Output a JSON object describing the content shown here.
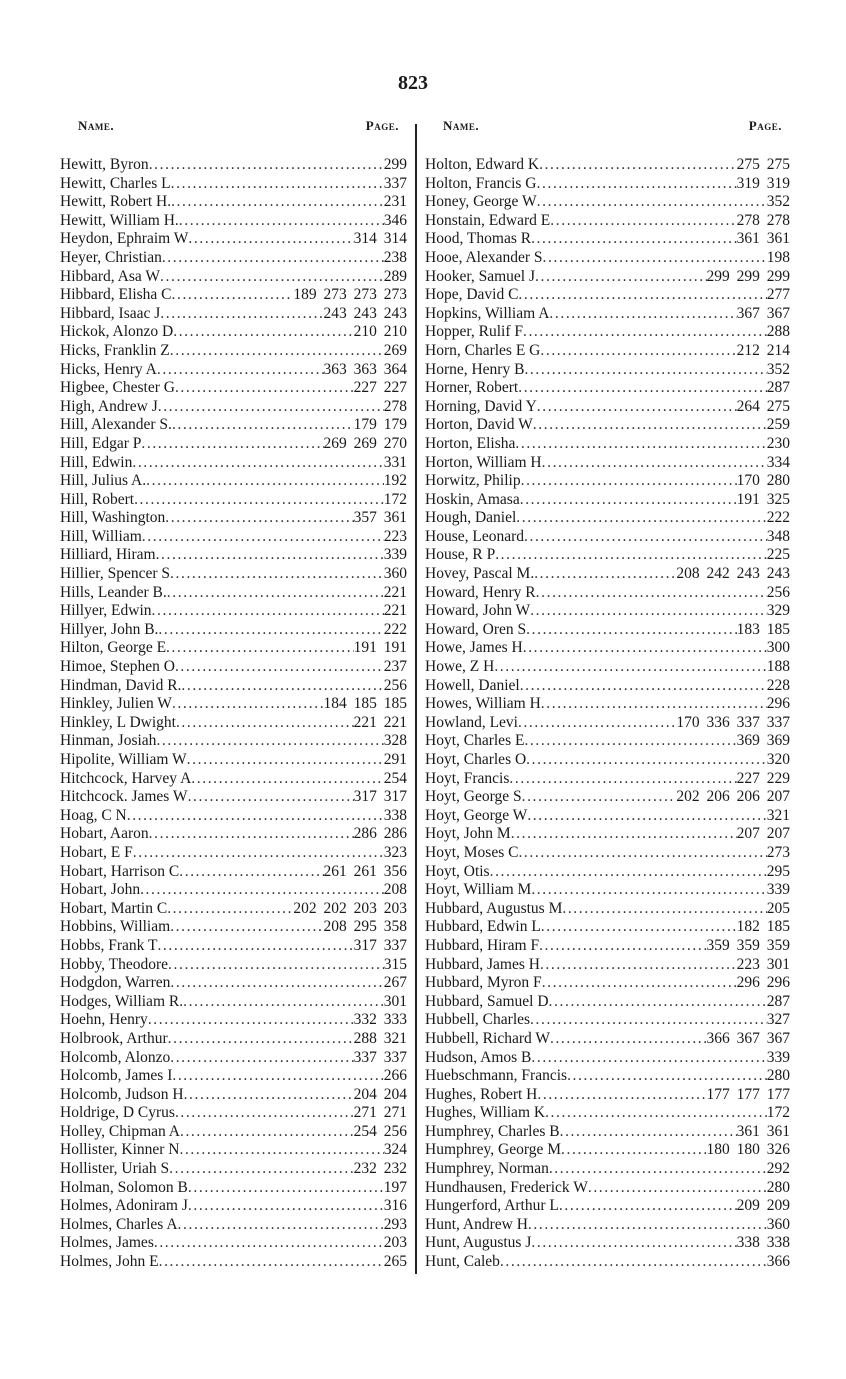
{
  "page_number": "823",
  "headers": {
    "name": "Name.",
    "page": "Page."
  },
  "left": [
    [
      "Hewitt, Byron",
      "299"
    ],
    [
      "Hewitt, Charles L",
      "337"
    ],
    [
      "Hewitt, Robert H.",
      "231"
    ],
    [
      "Hewitt, William H.",
      "346"
    ],
    [
      "Heydon, Ephraim W",
      "314 314"
    ],
    [
      "Heyer, Christian",
      "238"
    ],
    [
      "Hibbard, Asa W",
      "289"
    ],
    [
      "Hibbard, Elisha C",
      "189 273 273 273"
    ],
    [
      "Hibbard, Isaac J",
      "243 243 243"
    ],
    [
      "Hickok, Alonzo D",
      "210 210"
    ],
    [
      "Hicks, Franklin Z",
      "269"
    ],
    [
      "Hicks, Henry A",
      "363 363 364"
    ],
    [
      "Higbee, Chester G",
      "227 227"
    ],
    [
      "High, Andrew J",
      "278"
    ],
    [
      "Hill, Alexander S.",
      "179 179"
    ],
    [
      "Hill, Edgar P",
      "269 269 270"
    ],
    [
      "Hill, Edwin",
      "331"
    ],
    [
      "Hill, Julius A.",
      "192"
    ],
    [
      "Hill, Robert",
      "172"
    ],
    [
      "Hill, Washington",
      "357 361"
    ],
    [
      "Hill, William",
      "223"
    ],
    [
      "Hilliard, Hiram",
      "339"
    ],
    [
      "Hillier, Spencer S",
      "360"
    ],
    [
      "Hills, Leander B.",
      "221"
    ],
    [
      "Hillyer, Edwin",
      "221"
    ],
    [
      "Hillyer, John B.",
      "222"
    ],
    [
      "Hilton, George E",
      "191 191"
    ],
    [
      "Himoe, Stephen O",
      "237"
    ],
    [
      "Hindman, David R.",
      "256"
    ],
    [
      "Hinkley, Julien W",
      "184 185 185"
    ],
    [
      "Hinkley, L Dwight",
      "221 221"
    ],
    [
      "Hinman, Josiah",
      "328"
    ],
    [
      "Hipolite, William W",
      "291"
    ],
    [
      "Hitchcock, Harvey A",
      "254"
    ],
    [
      "Hitchcock. James W",
      "317 317"
    ],
    [
      "Hoag, C N",
      "338"
    ],
    [
      "Hobart, Aaron",
      "286 286"
    ],
    [
      "Hobart, E F",
      "323"
    ],
    [
      "Hobart, Harrison C",
      "261 261 356"
    ],
    [
      "Hobart, John",
      "208"
    ],
    [
      "Hobart, Martin C",
      "202 202 203 203"
    ],
    [
      "Hobbins, William",
      "208 295 358"
    ],
    [
      "Hobbs, Frank T",
      "317 337"
    ],
    [
      "Hobby, Theodore",
      "315"
    ],
    [
      "Hodgdon, Warren",
      "267"
    ],
    [
      "Hodges, William R.",
      "301"
    ],
    [
      "Hoehn, Henry",
      "332 333"
    ],
    [
      "Holbrook, Arthur",
      "288 321"
    ],
    [
      "Holcomb, Alonzo",
      "337 337"
    ],
    [
      "Holcomb, James I",
      "266"
    ],
    [
      "Holcomb, Judson H",
      "204 204"
    ],
    [
      "Holdrige, D Cyrus",
      "271 271"
    ],
    [
      "Holley, Chipman A",
      "254 256"
    ],
    [
      "Hollister, Kinner N",
      "324"
    ],
    [
      "Hollister, Uriah S",
      "232 232"
    ],
    [
      "Holman, Solomon B",
      "197"
    ],
    [
      "Holmes, Adoniram J",
      "316"
    ],
    [
      "Holmes, Charles A",
      "293"
    ],
    [
      "Holmes, James",
      "203"
    ],
    [
      "Holmes, John E",
      "265"
    ]
  ],
  "right": [
    [
      "Holton, Edward K",
      "275 275"
    ],
    [
      "Holton, Francis G",
      "319 319"
    ],
    [
      "Honey, George W",
      "352"
    ],
    [
      "Honstain, Edward E",
      "278 278"
    ],
    [
      "Hood, Thomas R",
      "361 361"
    ],
    [
      "Hooe, Alexander S",
      "198"
    ],
    [
      "Hooker, Samuel J",
      "299 299 299"
    ],
    [
      "Hope, David C",
      "277"
    ],
    [
      "Hopkins, William A",
      "367 367"
    ],
    [
      "Hopper, Rulif F",
      "288"
    ],
    [
      "Horn, Charles E G",
      "212 214"
    ],
    [
      "Horne, Henry B",
      "352"
    ],
    [
      "Horner, Robert",
      "287"
    ],
    [
      "Horning, David Y",
      "264 275"
    ],
    [
      "Horton, David W",
      "259"
    ],
    [
      "Horton, Elisha",
      "230"
    ],
    [
      "Horton, William H",
      "334"
    ],
    [
      "Horwitz, Philip",
      "170 280"
    ],
    [
      "Hoskin, Amasa",
      "191 325"
    ],
    [
      "Hough, Daniel",
      "222"
    ],
    [
      "House, Leonard",
      "348"
    ],
    [
      "House, R P",
      "225"
    ],
    [
      "Hovey, Pascal M.",
      "208 242 243 243"
    ],
    [
      "Howard, Henry R",
      "256"
    ],
    [
      "Howard, John W",
      "329"
    ],
    [
      "Howard, Oren S",
      "183 185"
    ],
    [
      "Howe, James H",
      "300"
    ],
    [
      "Howe, Z H",
      "188"
    ],
    [
      "Howell, Daniel",
      "228"
    ],
    [
      "Howes, William H",
      "296"
    ],
    [
      "Howland, Levi",
      "170 336 337 337"
    ],
    [
      "Hoyt, Charles E",
      "369 369"
    ],
    [
      "Hoyt, Charles O",
      "320"
    ],
    [
      "Hoyt, Francis",
      "227 229"
    ],
    [
      "Hoyt, George S",
      "202 206 206 207"
    ],
    [
      "Hoyt, George W",
      "321"
    ],
    [
      "Hoyt, John M",
      "207 207"
    ],
    [
      "Hoyt, Moses C",
      "273"
    ],
    [
      "Hoyt, Otis",
      "295"
    ],
    [
      "Hoyt, William M",
      "339"
    ],
    [
      "Hubbard, Augustus M",
      "205"
    ],
    [
      "Hubbard, Edwin L",
      "182 185"
    ],
    [
      "Hubbard, Hiram F",
      "359 359 359"
    ],
    [
      "Hubbard, James H",
      "223 301"
    ],
    [
      "Hubbard, Myron F",
      "296 296"
    ],
    [
      "Hubbard, Samuel D",
      "287"
    ],
    [
      "Hubbell, Charles",
      "327"
    ],
    [
      "Hubbell, Richard W",
      "366 367 367"
    ],
    [
      "Hudson, Amos B",
      "339"
    ],
    [
      "Huebschmann, Francis",
      "280"
    ],
    [
      "Hughes, Robert H",
      "177 177 177"
    ],
    [
      "Hughes, William K",
      "172"
    ],
    [
      "Humphrey, Charles B",
      "361 361"
    ],
    [
      "Humphrey, George M",
      "180 180 326"
    ],
    [
      "Humphrey, Norman",
      "292"
    ],
    [
      "Hundhausen, Frederick W",
      "280"
    ],
    [
      "Hungerford, Arthur L",
      "209 209"
    ],
    [
      "Hunt, Andrew H",
      "360"
    ],
    [
      "Hunt, Augustus J",
      "338 338"
    ],
    [
      "Hunt, Caleb",
      "366"
    ]
  ]
}
